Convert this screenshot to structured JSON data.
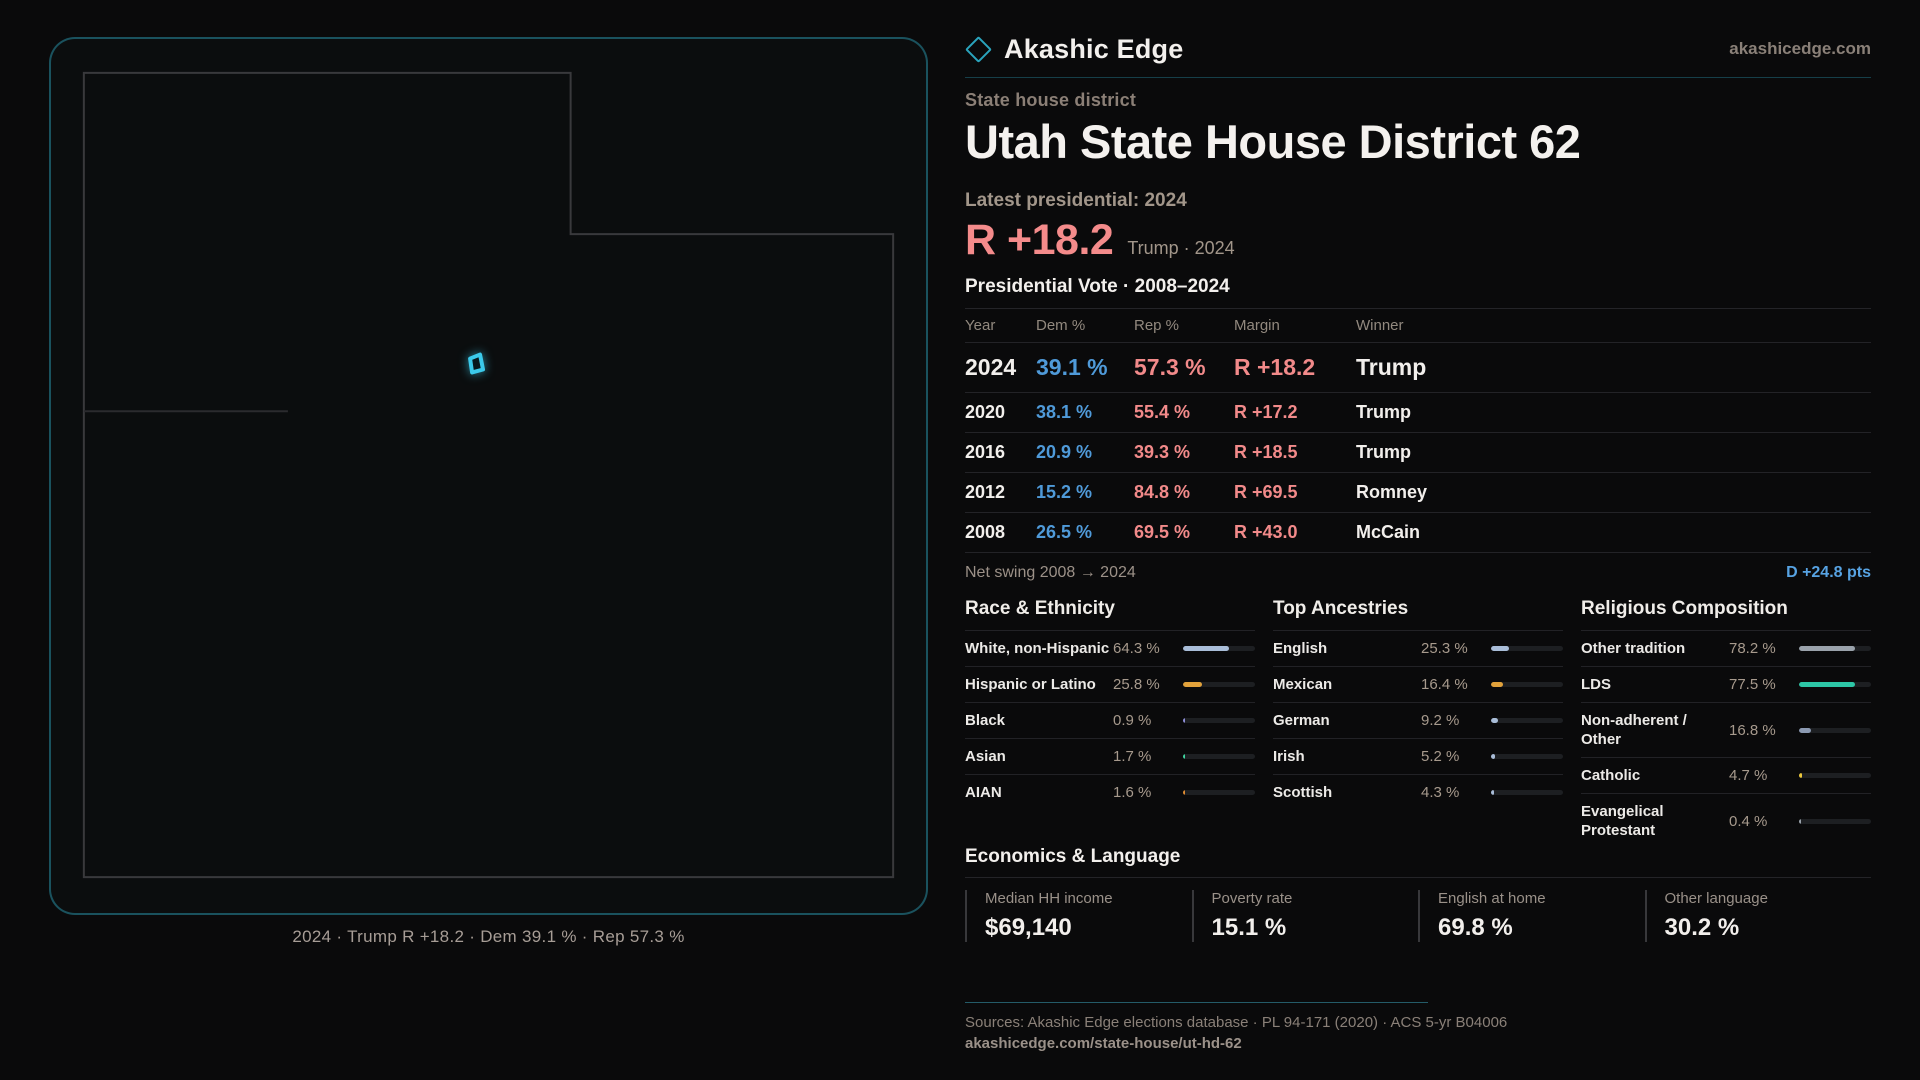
{
  "brand": {
    "name": "Akashic Edge",
    "domain": "akashicedge.com",
    "logo": "diamond-icon"
  },
  "page": {
    "kicker": "State house district",
    "title": "Utah State House District 62",
    "latest_label": "Latest presidential: 2024",
    "headline_margin": "R +18.2",
    "headline_sub": "Trump · 2024",
    "table_title": "Presidential Vote · 2008–2024"
  },
  "map": {
    "caption": "2024 · Trump R +18.2 · Dem 39.1 % · Rep 57.3 %",
    "marker_color": "#3bc9ea",
    "outline_color": "#39393c"
  },
  "vote_table": {
    "columns": [
      "Year",
      "Dem %",
      "Rep %",
      "Margin",
      "Winner"
    ],
    "rows": [
      {
        "year": "2024",
        "dem": "39.1 %",
        "rep": "57.3 %",
        "margin": "R +18.2",
        "winner": "Trump",
        "highlight": true
      },
      {
        "year": "2020",
        "dem": "38.1 %",
        "rep": "55.4 %",
        "margin": "R +17.2",
        "winner": "Trump",
        "highlight": false
      },
      {
        "year": "2016",
        "dem": "20.9 %",
        "rep": "39.3 %",
        "margin": "R +18.5",
        "winner": "Trump",
        "highlight": false
      },
      {
        "year": "2012",
        "dem": "15.2 %",
        "rep": "84.8 %",
        "margin": "R +69.5",
        "winner": "Romney",
        "highlight": false
      },
      {
        "year": "2008",
        "dem": "26.5 %",
        "rep": "69.5 %",
        "margin": "R +43.0",
        "winner": "McCain",
        "highlight": false
      }
    ],
    "net_swing_label": "Net swing 2008 → 2024",
    "net_swing_value": "D +24.8 pts"
  },
  "demographics": [
    {
      "title": "Race & Ethnicity",
      "rows": [
        {
          "label": "White, non-Hispanic",
          "value": "64.3 %",
          "pct": 64.3,
          "color": "#a9bdd8"
        },
        {
          "label": "Hispanic or Latino",
          "value": "25.8 %",
          "pct": 25.8,
          "color": "#e2a23b"
        },
        {
          "label": "Black",
          "value": "0.9 %",
          "pct": 0.9,
          "color": "#8f8fd8"
        },
        {
          "label": "Asian",
          "value": "1.7 %",
          "pct": 1.7,
          "color": "#3fd39f"
        },
        {
          "label": "AIAN",
          "value": "1.6 %",
          "pct": 1.6,
          "color": "#df8c33"
        }
      ]
    },
    {
      "title": "Top Ancestries",
      "rows": [
        {
          "label": "English",
          "value": "25.3 %",
          "pct": 25.3,
          "color": "#a9bdd8"
        },
        {
          "label": "Mexican",
          "value": "16.4 %",
          "pct": 16.4,
          "color": "#e2a23b"
        },
        {
          "label": "German",
          "value": "9.2 %",
          "pct": 9.2,
          "color": "#a9bdd8"
        },
        {
          "label": "Irish",
          "value": "5.2 %",
          "pct": 5.2,
          "color": "#a9bdd8"
        },
        {
          "label": "Scottish",
          "value": "4.3 %",
          "pct": 4.3,
          "color": "#a9bdd8"
        }
      ]
    },
    {
      "title": "Religious Composition",
      "rows": [
        {
          "label": "Other tradition",
          "value": "78.2 %",
          "pct": 78.2,
          "color": "#9aa2ab"
        },
        {
          "label": "LDS",
          "value": "77.5 %",
          "pct": 77.5,
          "color": "#2dc7a7"
        },
        {
          "label": "Non-adherent / Other",
          "value": "16.8 %",
          "pct": 16.8,
          "color": "#8c9ab2"
        },
        {
          "label": "Catholic",
          "value": "4.7 %",
          "pct": 4.7,
          "color": "#ecc83d"
        },
        {
          "label": "Evangelical Protestant",
          "value": "0.4 %",
          "pct": 0.4,
          "color": "#9aa2ab"
        }
      ]
    }
  ],
  "economics": {
    "title": "Economics & Language",
    "stats": [
      {
        "label": "Median HH income",
        "value": "$69,140"
      },
      {
        "label": "Poverty rate",
        "value": "15.1 %"
      },
      {
        "label": "English at home",
        "value": "69.8 %"
      },
      {
        "label": "Other language",
        "value": "30.2 %"
      }
    ]
  },
  "footer": {
    "sources": "Sources: Akashic Edge elections database · PL 94-171 (2020) · ACS 5-yr B04006",
    "permalink": "akashicedge.com/state-house/ut-hd-62"
  },
  "chart_data": [
    {
      "type": "table",
      "title": "Presidential Vote · 2008–2024",
      "columns": [
        "Year",
        "Dem %",
        "Rep %",
        "Margin",
        "Winner"
      ],
      "rows": [
        [
          "2024",
          39.1,
          57.3,
          "R +18.2",
          "Trump"
        ],
        [
          "2020",
          38.1,
          55.4,
          "R +17.2",
          "Trump"
        ],
        [
          "2016",
          20.9,
          39.3,
          "R +18.5",
          "Trump"
        ],
        [
          "2012",
          15.2,
          84.8,
          "R +69.5",
          "Romney"
        ],
        [
          "2008",
          26.5,
          69.5,
          "R +43.0",
          "McCain"
        ]
      ],
      "annotation": "Net swing 2008 → 2024: D +24.8 pts"
    },
    {
      "type": "bar",
      "title": "Race & Ethnicity",
      "categories": [
        "White, non-Hispanic",
        "Hispanic or Latino",
        "Black",
        "Asian",
        "AIAN"
      ],
      "values": [
        64.3,
        25.8,
        0.9,
        1.7,
        1.6
      ],
      "xlabel": "",
      "ylabel": "%",
      "ylim": [
        0,
        100
      ]
    },
    {
      "type": "bar",
      "title": "Top Ancestries",
      "categories": [
        "English",
        "Mexican",
        "German",
        "Irish",
        "Scottish"
      ],
      "values": [
        25.3,
        16.4,
        9.2,
        5.2,
        4.3
      ],
      "xlabel": "",
      "ylabel": "%",
      "ylim": [
        0,
        100
      ]
    },
    {
      "type": "bar",
      "title": "Religious Composition",
      "categories": [
        "Other tradition",
        "LDS",
        "Non-adherent / Other",
        "Catholic",
        "Evangelical Protestant"
      ],
      "values": [
        78.2,
        77.5,
        16.8,
        4.7,
        0.4
      ],
      "xlabel": "",
      "ylabel": "%",
      "ylim": [
        0,
        100
      ]
    }
  ]
}
